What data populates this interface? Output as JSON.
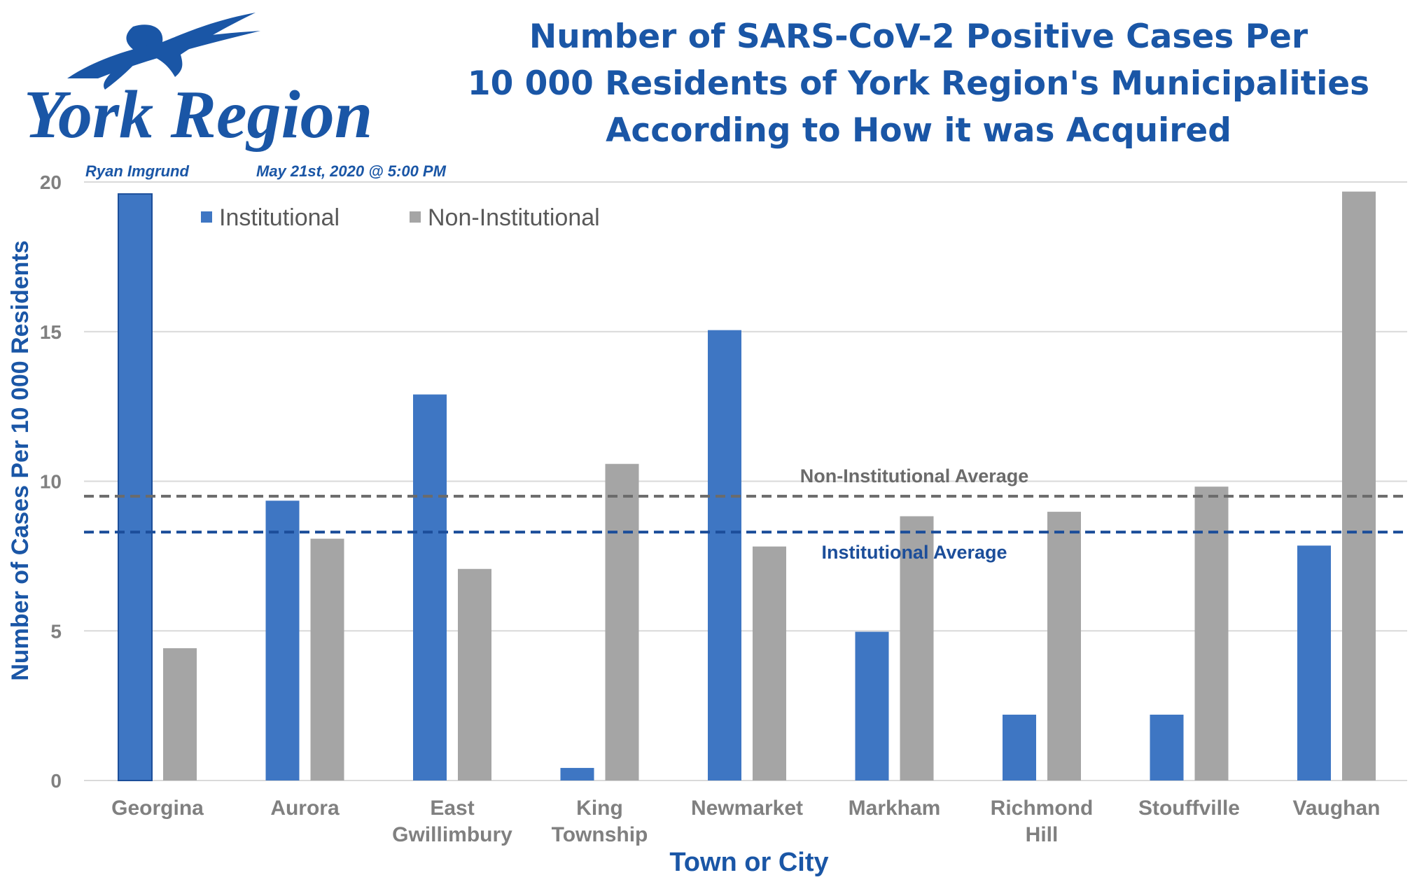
{
  "logo": {
    "text": "York Region"
  },
  "author": "Ryan Imgrund",
  "date": "May 21st, 2020 @ 5:00 PM",
  "colors": {
    "institutional": "#3e76c3",
    "non_institutional": "#a5a5a5",
    "title": "#1a56a6",
    "axis_label": "#1a56a6",
    "tick": "#808080",
    "grid": "#d9d9d9",
    "inst_avg": "#1c4e9a",
    "noninst_avg": "#6b6b6b"
  },
  "chart_data": {
    "type": "bar",
    "title": [
      "Number of SARS-CoV-2 Positive Cases Per",
      "10 000 Residents of York Region's Municipalities",
      "According to How it was Acquired"
    ],
    "xlabel": "Town or City",
    "ylabel": "Number of Cases Per 10 000 Residents",
    "ylim": [
      0,
      20
    ],
    "yticks": [
      0,
      5,
      10,
      15,
      20
    ],
    "grid": true,
    "legend_position": "top-left",
    "categories": [
      [
        "Georgina"
      ],
      [
        "Aurora"
      ],
      [
        "East",
        "Gwillimbury"
      ],
      [
        "King",
        "Township"
      ],
      [
        "Newmarket"
      ],
      [
        "Markham"
      ],
      [
        "Richmond",
        "Hill"
      ],
      [
        "Stouffville"
      ],
      [
        "Vaughan"
      ]
    ],
    "series": [
      {
        "name": "Institutional",
        "values": [
          19.6,
          9.35,
          12.9,
          0.42,
          15.05,
          4.97,
          2.2,
          2.2,
          7.85
        ]
      },
      {
        "name": "Non-Institutional",
        "values": [
          4.42,
          8.08,
          7.07,
          10.58,
          7.82,
          8.83,
          8.98,
          9.82,
          19.68
        ]
      }
    ],
    "reference_lines": [
      {
        "name": "Non-Institutional Average",
        "value": 9.5
      },
      {
        "name": "Institutional Average",
        "value": 8.3
      }
    ]
  }
}
